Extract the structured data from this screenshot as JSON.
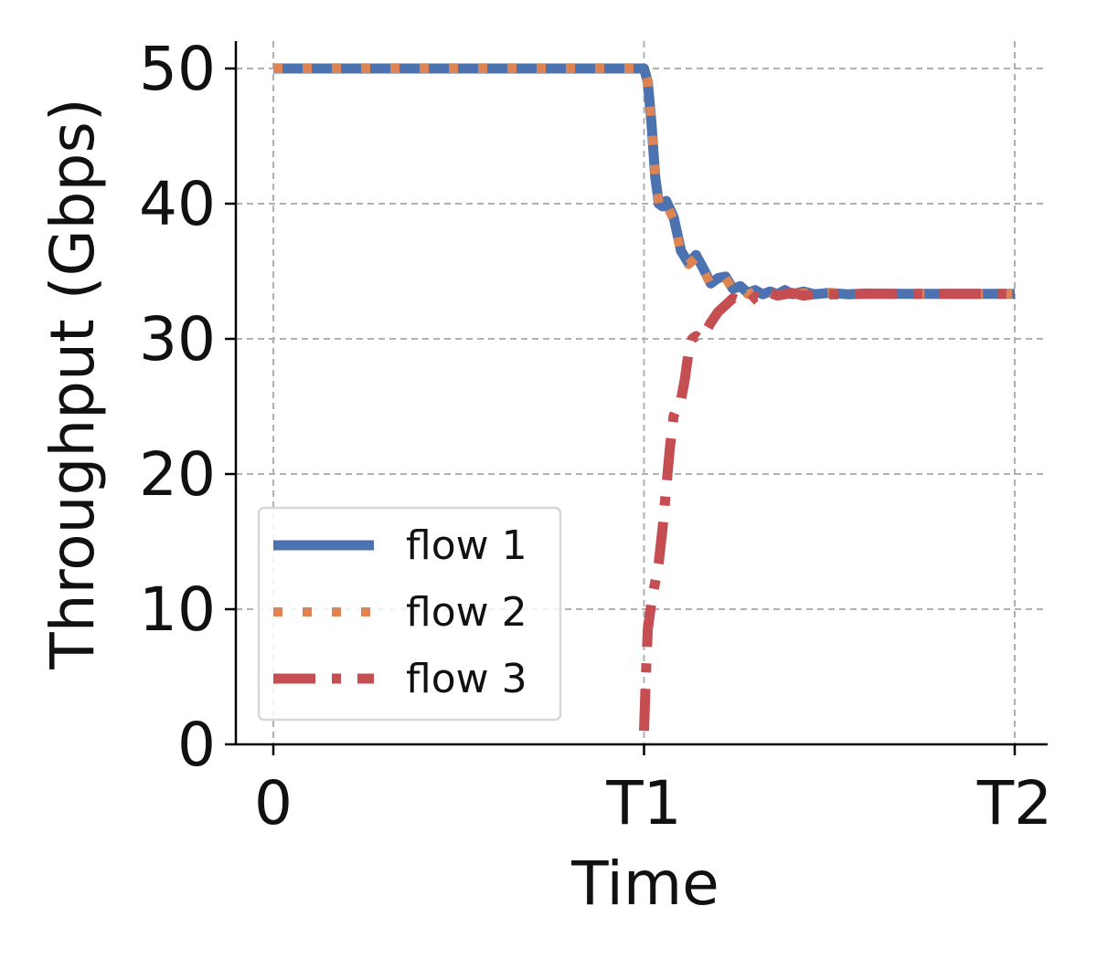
{
  "chart_data": {
    "type": "line",
    "xlabel": "Time",
    "ylabel": "Throughput (Gbps)",
    "x_ticks": [
      {
        "value": 0,
        "label": "0"
      },
      {
        "value": 1,
        "label": "T1"
      },
      {
        "value": 2,
        "label": "T2"
      }
    ],
    "y_ticks": [
      {
        "value": 0,
        "label": "0"
      },
      {
        "value": 10,
        "label": "10"
      },
      {
        "value": 20,
        "label": "20"
      },
      {
        "value": 30,
        "label": "30"
      },
      {
        "value": 40,
        "label": "40"
      },
      {
        "value": 50,
        "label": "50"
      }
    ],
    "xlim": [
      -0.1,
      2.09
    ],
    "ylim": [
      0,
      52
    ],
    "grid": true,
    "legend_position": "lower-left",
    "series": [
      {
        "name": "flow 1",
        "color": "#4c72b0",
        "style": "solid",
        "x": [
          0,
          0.1,
          0.2,
          0.3,
          0.4,
          0.5,
          0.6,
          0.7,
          0.8,
          0.9,
          1.0,
          1.01,
          1.02,
          1.03,
          1.04,
          1.05,
          1.06,
          1.08,
          1.1,
          1.12,
          1.14,
          1.16,
          1.18,
          1.2,
          1.22,
          1.24,
          1.26,
          1.28,
          1.3,
          1.32,
          1.34,
          1.36,
          1.38,
          1.4,
          1.43,
          1.46,
          1.5,
          1.55,
          1.6,
          1.7,
          1.8,
          1.9,
          2.0
        ],
        "y": [
          50,
          50,
          50,
          50,
          50,
          50,
          50,
          50,
          50,
          50,
          50,
          49,
          46,
          42,
          40,
          39.8,
          40.2,
          39,
          36.5,
          35.6,
          36.2,
          35.2,
          34.1,
          34.5,
          34.6,
          33.7,
          33.9,
          33.4,
          33.6,
          33.3,
          33.5,
          33.3,
          33.6,
          33.3,
          33.5,
          33.3,
          33.4,
          33.3,
          33.35,
          33.33,
          33.33,
          33.33,
          33.33
        ]
      },
      {
        "name": "flow 2",
        "color": "#dd8452",
        "style": "dotted",
        "x": [
          0,
          0.1,
          0.2,
          0.3,
          0.4,
          0.5,
          0.6,
          0.7,
          0.8,
          0.9,
          1.0,
          1.01,
          1.02,
          1.03,
          1.04,
          1.05,
          1.06,
          1.08,
          1.1,
          1.12,
          1.14,
          1.16,
          1.18,
          1.2,
          1.22,
          1.24,
          1.26,
          1.28,
          1.3,
          1.32,
          1.34,
          1.36,
          1.38,
          1.4,
          1.43,
          1.46,
          1.5,
          1.55,
          1.6,
          1.7,
          1.8,
          1.9,
          2.0
        ],
        "y": [
          50,
          50,
          50,
          50,
          50,
          50,
          50,
          50,
          50,
          50,
          50,
          49,
          46,
          42,
          40,
          39.6,
          40,
          38.8,
          36.3,
          35.5,
          36,
          35.1,
          34,
          34.4,
          34.5,
          33.6,
          33.8,
          33.3,
          33.5,
          33.2,
          33.5,
          33.2,
          33.5,
          33.3,
          33.4,
          33.3,
          33.4,
          33.3,
          33.35,
          33.33,
          33.33,
          33.33,
          33.33
        ]
      },
      {
        "name": "flow 3",
        "color": "#c44e52",
        "style": "dashdot",
        "x": [
          1.0,
          1.005,
          1.01,
          1.02,
          1.03,
          1.04,
          1.05,
          1.06,
          1.07,
          1.08,
          1.09,
          1.1,
          1.11,
          1.12,
          1.13,
          1.14,
          1.15,
          1.16,
          1.18,
          1.2,
          1.22,
          1.24,
          1.26,
          1.28,
          1.3,
          1.32,
          1.34,
          1.36,
          1.38,
          1.4,
          1.43,
          1.46,
          1.5,
          1.55,
          1.6,
          1.7,
          1.8,
          1.9,
          2.0
        ],
        "y": [
          1,
          5,
          8.5,
          10.5,
          12,
          13.5,
          16,
          19,
          22,
          24.3,
          25,
          25.5,
          27,
          29,
          30,
          30.2,
          30,
          30.2,
          31.2,
          32,
          32.5,
          33,
          32.8,
          32.6,
          33.1,
          32.9,
          33.4,
          33.2,
          33.3,
          33.4,
          33.2,
          33.3,
          33.3,
          33.3,
          33.33,
          33.33,
          33.33,
          33.33,
          33.33
        ]
      }
    ]
  }
}
